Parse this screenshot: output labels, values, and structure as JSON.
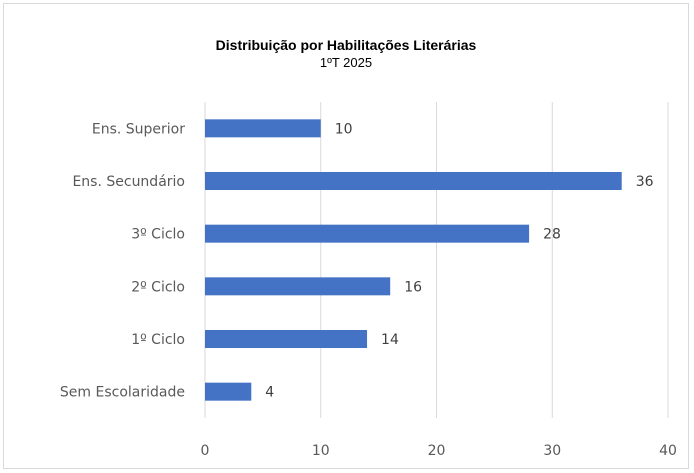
{
  "chart_data": {
    "type": "bar",
    "orientation": "horizontal",
    "title": "Distribuição  por Habilitações  Literárias",
    "subtitle": "1ºT  2025",
    "categories": [
      "Ens. Superior",
      "Ens. Secundário",
      "3º Ciclo",
      "2º Ciclo",
      "1º Ciclo",
      "Sem Escolaridade"
    ],
    "values": [
      10,
      36,
      28,
      16,
      14,
      4
    ],
    "xlim": [
      0,
      40
    ],
    "xticks": [
      0,
      10,
      20,
      30,
      40
    ],
    "grid": true,
    "bar_color": "#4472c4",
    "gridline_color": "#d9d9d9"
  }
}
